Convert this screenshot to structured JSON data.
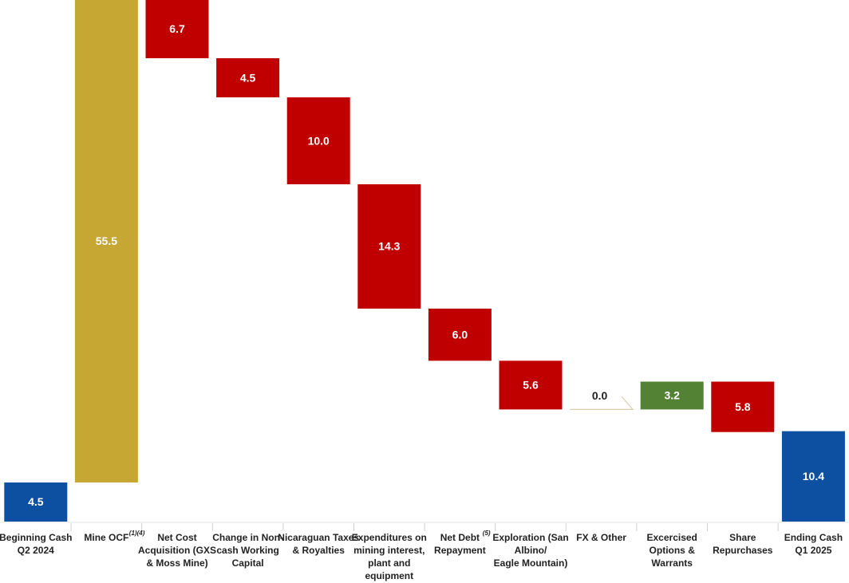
{
  "chart_data": {
    "type": "waterfall",
    "title": "",
    "xlabel": "",
    "ylabel": "",
    "grid": false,
    "legend": "none",
    "colors": {
      "total": "#0d4fa0",
      "increase_primary": "#c6a733",
      "increase": "#548235",
      "decrease": "#c00000",
      "zero": "#d9cfae",
      "label_dark": "#222222",
      "label_light": "#ffffff"
    },
    "steps": [
      {
        "label_lines": [
          "Beginning Cash",
          "Q2 2024"
        ],
        "superscript": "",
        "value": 4.5,
        "display": "4.5",
        "kind": "total"
      },
      {
        "label_lines": [
          "Mine OCF"
        ],
        "superscript": "(1)(4)",
        "value": 55.5,
        "display": "55.5",
        "kind": "increase_primary"
      },
      {
        "label_lines": [
          "Net Cost",
          "Acquisition (GXS",
          "& Moss Mine)"
        ],
        "superscript": "",
        "value": -6.7,
        "display": "6.7",
        "kind": "decrease"
      },
      {
        "label_lines": [
          "Change in Non-",
          "cash Working",
          "Capital"
        ],
        "superscript": "",
        "value": -4.5,
        "display": "4.5",
        "kind": "decrease"
      },
      {
        "label_lines": [
          "Nicaraguan Taxes",
          "& Royalties"
        ],
        "superscript": "",
        "value": -10.0,
        "display": "10.0",
        "kind": "decrease"
      },
      {
        "label_lines": [
          "Expenditures on",
          "mining interest,",
          "plant and",
          "equipment"
        ],
        "superscript": "",
        "value": -14.3,
        "display": "14.3",
        "kind": "decrease"
      },
      {
        "label_lines": [
          "Net Debt",
          "Repayment"
        ],
        "superscript": "(5)",
        "value": -6.0,
        "display": "6.0",
        "kind": "decrease"
      },
      {
        "label_lines": [
          "Exploration (San",
          "Albino/",
          "Eagle Mountain)"
        ],
        "superscript": "",
        "value": -5.6,
        "display": "5.6",
        "kind": "decrease"
      },
      {
        "label_lines": [
          "FX & Other"
        ],
        "superscript": "",
        "value": 0.0,
        "display": "0.0",
        "kind": "zero"
      },
      {
        "label_lines": [
          "Excercised",
          "Options &",
          "Warrants"
        ],
        "superscript": "",
        "value": 3.2,
        "display": "3.2",
        "kind": "increase"
      },
      {
        "label_lines": [
          "Share",
          "Repurchases"
        ],
        "superscript": "",
        "value": -5.8,
        "display": "5.8",
        "kind": "decrease"
      },
      {
        "label_lines": [
          "Ending Cash",
          "Q1 2025"
        ],
        "superscript": "",
        "value": 10.4,
        "display": "10.4",
        "kind": "total"
      }
    ]
  }
}
